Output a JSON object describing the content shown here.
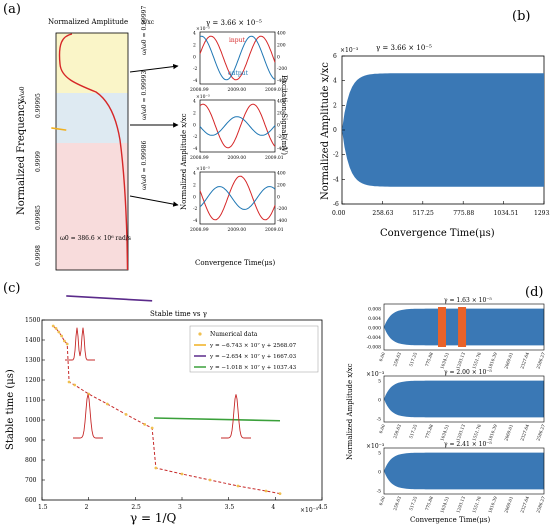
{
  "colors": {
    "amplitude": "#3a78b5",
    "input": "#d62728",
    "output": "#1f77b4",
    "curve": "#d62728",
    "band_top": "#faf5c8",
    "band_mid": "#deeaf2",
    "band_bot": "#f8dcdc",
    "fit1": "#f0b020",
    "fit2": "#5a2a8a",
    "fit3": "#3aa03a",
    "highlight": "#e8622a"
  },
  "panel_a": {
    "label": "(a)",
    "strip_title": "Normalized Amplitude",
    "strip_ratio": "x/xc",
    "ylabel": "Normalized Frequency",
    "ylabel_ratio": "ω/ω0",
    "yticks": [
      "0.9998",
      "0.99985",
      "0.9999",
      "0.99995"
    ],
    "omega0": "ω0 = 386.6 × 10⁶ rad/s",
    "gamma_label": "γ = 3.66 × 10⁻⁵",
    "freq_labels": [
      "ω/ω0 = 0.99997",
      "ω/ω0 = 0.99993",
      "ω/ω0 = 0.99986"
    ],
    "legend": [
      "input",
      "output"
    ],
    "sub_xticks": [
      "2008.99",
      "2009.00",
      "2009.01"
    ],
    "sub_xlabel": "Convergence Time(μs)",
    "sub_ylabel_left": "Normalized Amplitude x/xc",
    "sub_ylabel_right": "Excitation Signal (mV)",
    "sub_exp": "×10⁻³",
    "sub_yticks_left": [
      "-4",
      "-2",
      "0",
      "2",
      "4"
    ],
    "sub_yticks_right": [
      "-400",
      "-200",
      "0",
      "200",
      "400"
    ]
  },
  "panel_b": {
    "label": "(b)",
    "title": "γ = 3.66 × 10⁻⁵",
    "exp": "×10⁻³",
    "xlabel": "Convergence Time(μs)",
    "ylabel": "Normalized Amplitude x/xc",
    "xticks": [
      "0.00",
      "258.63",
      "517.25",
      "775.88",
      "1034.51",
      "1293.13"
    ],
    "yticks": [
      "-6",
      "-4",
      "-2",
      "0",
      "2",
      "4",
      "6"
    ]
  },
  "panel_c": {
    "label": "(c)",
    "title": "Stable time vs γ",
    "xlabel": "γ = 1/Q",
    "ylabel": "Stable time (μs)",
    "xexp": "×10⁻⁵",
    "xticks": [
      "1.5",
      "2",
      "2.5",
      "3",
      "3.5",
      "4",
      "4.5"
    ],
    "yticks": [
      "600",
      "700",
      "800",
      "900",
      "1000",
      "1100",
      "1200",
      "1300",
      "1400",
      "1500"
    ],
    "legend": [
      "Numerical data",
      "y = −6.743 × 10⁷ γ + 2568.07",
      "y = −2.654 × 10⁷ γ + 1667.03",
      "y = −1.018 × 10⁷ γ + 1037.43"
    ]
  },
  "panel_d": {
    "label": "(d)",
    "ylabel": "Normalized Amplitude x/xc",
    "xlabel": "Convergence Time(μs)",
    "titles": [
      "γ = 1.63 × 10⁻⁵",
      "γ = 2.00 × 10⁻⁵",
      "γ = 2.41 × 10⁻⁵"
    ],
    "yticks_top": [
      "0.008",
      "0.004",
      "0.000",
      "-0.004",
      "-0.008"
    ],
    "yticks_other": [
      "5",
      "0",
      "-5"
    ],
    "exp": "×10⁻³",
    "xticks": [
      "0.00",
      "258.63",
      "517.25",
      "775.88",
      "1034.51",
      "1293.13",
      "1551.76",
      "1810.39",
      "2069.01",
      "2327.64",
      "2586.27"
    ]
  },
  "chart_data": [
    {
      "type": "line",
      "panel": "a-main",
      "xlabel": "Normalized Amplitude x/xc",
      "ylabel": "Normalized Frequency ω/ω0",
      "y_ticks": [
        0.9998,
        0.99985,
        0.9999,
        0.99995
      ],
      "ylim": [
        0.99977,
        1.0
      ],
      "bands": [
        {
          "from": 0.99994,
          "to": 1.0,
          "color": "yellow"
        },
        {
          "from": 0.9999,
          "to": 0.99994,
          "color": "blue"
        },
        {
          "from": 0.99977,
          "to": 0.9999,
          "color": "red"
        }
      ]
    },
    {
      "type": "line",
      "panel": "a-sub",
      "title": "γ = 3.66 × 10⁻⁵",
      "x": [
        2008.99,
        2009.0,
        2009.01
      ],
      "series": [
        {
          "name": "input",
          "amplitude_mV": 400,
          "freq_ratio": 0.99997
        },
        {
          "name": "output",
          "amplitude": 0.004,
          "freq_ratio": 0.99997
        }
      ]
    },
    {
      "type": "area",
      "panel": "b",
      "title": "γ = 3.66 × 10⁻⁵",
      "x_range": [
        0,
        1293.13
      ],
      "xticks": [
        0.0,
        258.63,
        517.25,
        775.88,
        1034.51,
        1293.13
      ],
      "ylim": [
        -6,
        6
      ],
      "steady_amplitude": 4.6,
      "rise_time": 100
    },
    {
      "type": "scatter",
      "panel": "c",
      "title": "Stable time vs γ",
      "xlabel": "γ = 1/Q",
      "ylabel": "Stable time (μs)",
      "xlim": [
        1.5,
        4.5
      ],
      "ylim": [
        600,
        1500
      ],
      "series": [
        {
          "name": "Numerical data",
          "x": [
            1.62,
            1.65,
            1.68,
            1.71,
            1.74,
            1.77,
            1.79,
            1.85,
            2.0,
            2.2,
            2.4,
            2.6,
            2.68,
            2.72,
            3.0,
            3.3,
            3.6,
            3.9,
            4.05
          ],
          "y": [
            1470,
            1458,
            1440,
            1420,
            1395,
            1380,
            1190,
            1175,
            1130,
            1080,
            1028,
            978,
            960,
            760,
            730,
            700,
            670,
            645,
            632
          ]
        },
        {
          "name": "y = −6.743 × 10⁷ γ + 2568.07",
          "slope": -67.43,
          "intercept": 2568.07,
          "x_range": [
            1.6,
            1.76
          ]
        },
        {
          "name": "y = −2.654 × 10⁷ γ + 1667.03",
          "slope": -26.54,
          "intercept": 1667.03,
          "x_range": [
            1.76,
            2.68
          ]
        },
        {
          "name": "y = −1.018 × 10⁷ γ + 1037.43",
          "slope": -10.18,
          "intercept": 1037.43,
          "x_range": [
            2.7,
            4.05
          ]
        }
      ]
    },
    {
      "type": "area",
      "panel": "d",
      "x_range": [
        0,
        2586.27
      ],
      "series": [
        {
          "name": "γ = 1.63 × 10⁻⁵",
          "steady_amplitude": 0.008,
          "highlights": [
            [
              775.88,
              1034.51
            ],
            [
              1100,
              1293.13
            ]
          ]
        },
        {
          "name": "γ = 2.00 × 10⁻⁵",
          "steady_amplitude": 6.5
        },
        {
          "name": "γ = 2.41 × 10⁻⁵",
          "steady_amplitude": 6.5
        }
      ]
    }
  ]
}
